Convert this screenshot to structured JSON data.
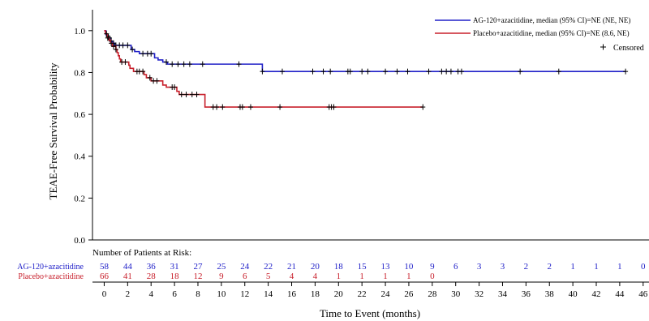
{
  "chart_data": {
    "type": "line",
    "title": "",
    "xlabel": "Time to Event (months)",
    "ylabel": "TEAE-Free Survival Probability",
    "xlim": [
      -1,
      46.5
    ],
    "ylim": [
      0,
      1.1
    ],
    "x_ticks": [
      0,
      2,
      4,
      6,
      8,
      10,
      12,
      14,
      16,
      18,
      20,
      22,
      24,
      26,
      28,
      30,
      32,
      34,
      36,
      38,
      40,
      42,
      44,
      46
    ],
    "y_ticks": [
      "0.0",
      "0.2",
      "0.4",
      "0.6",
      "0.8",
      "1.0"
    ],
    "y_tick_values": [
      0,
      0.2,
      0.4,
      0.6,
      0.8,
      1.0
    ],
    "grid": false,
    "legend_position": "top-right",
    "censored_label": "Censored",
    "series": [
      {
        "name": "AG-120+azacitidine, median (95% CI)=NE (NE, NE)",
        "color": "#2020c8",
        "steps": [
          [
            0,
            1.0
          ],
          [
            0.15,
            0.98
          ],
          [
            0.3,
            0.965
          ],
          [
            0.5,
            0.95
          ],
          [
            0.7,
            0.94
          ],
          [
            0.9,
            0.93
          ],
          [
            2.3,
            0.91
          ],
          [
            2.6,
            0.9
          ],
          [
            3.0,
            0.89
          ],
          [
            4.3,
            0.87
          ],
          [
            4.6,
            0.86
          ],
          [
            5.0,
            0.85
          ],
          [
            5.4,
            0.84
          ],
          [
            13.5,
            0.805
          ],
          [
            44.5,
            0.805
          ]
        ],
        "censored": [
          0.3,
          0.45,
          0.6,
          0.8,
          1.0,
          1.3,
          1.6,
          2.0,
          2.4,
          3.3,
          3.7,
          4.0,
          5.3,
          5.8,
          6.3,
          6.8,
          7.3,
          8.4,
          11.5,
          13.5,
          15.2,
          17.8,
          18.7,
          19.3,
          20.8,
          21.0,
          22.0,
          22.5,
          24.0,
          25.0,
          25.9,
          27.7,
          28.8,
          29.2,
          29.6,
          30.2,
          30.5,
          35.5,
          38.8,
          44.5
        ]
      },
      {
        "name": "Placebo+azacitidine, median (95% CI)=NE (8.6, NE)",
        "color": "#c8202c",
        "steps": [
          [
            0,
            1.0
          ],
          [
            0.1,
            0.985
          ],
          [
            0.25,
            0.97
          ],
          [
            0.4,
            0.955
          ],
          [
            0.55,
            0.94
          ],
          [
            0.7,
            0.925
          ],
          [
            1.0,
            0.91
          ],
          [
            1.1,
            0.895
          ],
          [
            1.2,
            0.88
          ],
          [
            1.3,
            0.865
          ],
          [
            1.4,
            0.85
          ],
          [
            2.1,
            0.835
          ],
          [
            2.2,
            0.82
          ],
          [
            2.5,
            0.805
          ],
          [
            3.4,
            0.79
          ],
          [
            3.6,
            0.775
          ],
          [
            4.0,
            0.76
          ],
          [
            5.0,
            0.74
          ],
          [
            5.3,
            0.73
          ],
          [
            6.2,
            0.71
          ],
          [
            6.4,
            0.695
          ],
          [
            8.6,
            0.635
          ],
          [
            27.2,
            0.635
          ]
        ],
        "censored": [
          0.2,
          0.35,
          0.6,
          0.8,
          1.0,
          1.5,
          1.8,
          2.8,
          3.0,
          3.3,
          3.9,
          4.2,
          4.5,
          5.8,
          6.0,
          6.6,
          7.0,
          7.5,
          7.9,
          9.3,
          9.6,
          10.1,
          11.6,
          11.8,
          12.5,
          15.0,
          19.2,
          19.4,
          19.6,
          27.2
        ]
      }
    ]
  },
  "risk_table": {
    "header": "Number of Patients at Risk:",
    "x": [
      0,
      2,
      4,
      6,
      8,
      10,
      12,
      14,
      16,
      18,
      20,
      22,
      24,
      26,
      28,
      30,
      32,
      34,
      36,
      38,
      40,
      42,
      44,
      46
    ],
    "rows": [
      {
        "label": "AG-120+azacitidine",
        "color": "#2020c8",
        "counts": [
          "58",
          "44",
          "36",
          "31",
          "27",
          "25",
          "24",
          "22",
          "21",
          "20",
          "18",
          "15",
          "13",
          "10",
          "9",
          "6",
          "3",
          "3",
          "2",
          "2",
          "1",
          "1",
          "1",
          "0"
        ]
      },
      {
        "label": "Placebo+azacitidine",
        "color": "#c8202c",
        "counts": [
          "66",
          "41",
          "28",
          "18",
          "12",
          "9",
          "6",
          "5",
          "4",
          "4",
          "1",
          "1",
          "1",
          "1",
          "0"
        ]
      }
    ]
  }
}
